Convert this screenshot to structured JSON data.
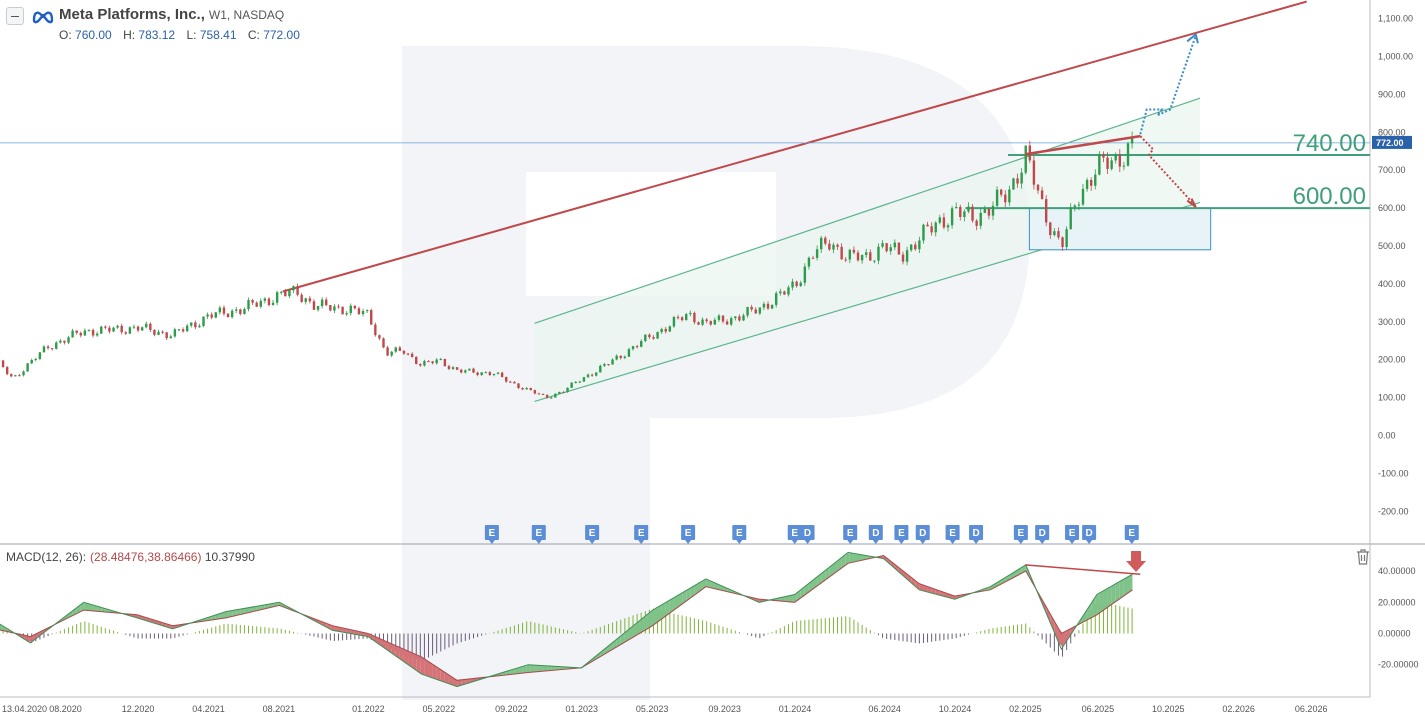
{
  "header": {
    "symbol": "Meta Platforms, Inc.,",
    "meta": "W1, NASDAQ",
    "ohlc": [
      {
        "k": "O:",
        "v": "760.00"
      },
      {
        "k": "H:",
        "v": "783.12"
      },
      {
        "k": "L:",
        "v": "758.41"
      },
      {
        "k": "C:",
        "v": "772.00"
      }
    ]
  },
  "macd_label": {
    "name": "MACD(12, 26):",
    "values": "(28.48476,38.86466)",
    "hist": "10.37990"
  },
  "colors": {
    "up": "#2e9b4a",
    "down": "#c0484a",
    "channel": "#5cb58e",
    "trend": "#c0484a",
    "level": "#3f9f7a",
    "accent": "#2962a8"
  },
  "icons": [
    "collapse-icon",
    "meta-logo-icon",
    "trash-icon",
    "earnings-marker-icon",
    "dividend-marker-icon",
    "down-arrow-icon"
  ],
  "chart_data": {
    "type": "candlestick",
    "price_axis": {
      "ticks": [
        "1,100.00",
        "1,000.00",
        "900.00",
        "800.00",
        "700.00",
        "600.00",
        "500.00",
        "400.00",
        "300.00",
        "200.00",
        "100.00",
        "0.00",
        "-100.00",
        "-200.00"
      ]
    },
    "time_axis": {
      "ticks": [
        "13.04.2020",
        "08.2020",
        "12.2020",
        "04.2021",
        "08.2021",
        "01.2022",
        "05.2022",
        "09.2022",
        "01.2023",
        "05.2023",
        "09.2023",
        "01.2024",
        "06.2024",
        "10.2024",
        "02.2025",
        "06.2025",
        "10.2025",
        "02.2026",
        "06.2026"
      ]
    },
    "current_price": {
      "label": "772.00",
      "value": 772
    },
    "levels": [
      {
        "label": "740.00",
        "value": 740
      },
      {
        "label": "600.00",
        "value": 600
      }
    ],
    "price_path": [
      [
        "2020-04",
        200
      ],
      [
        "2020-05",
        150
      ],
      [
        "2020-07",
        235
      ],
      [
        "2020-09",
        275
      ],
      [
        "2020-11",
        280
      ],
      [
        "2020-12",
        285
      ],
      [
        "2021-02",
        265
      ],
      [
        "2021-04",
        315
      ],
      [
        "2021-06",
        335
      ],
      [
        "2021-08",
        370
      ],
      [
        "2021-09",
        380
      ],
      [
        "2021-10",
        340
      ],
      [
        "2021-11",
        340
      ],
      [
        "2021-12",
        330
      ],
      [
        "2022-01",
        320
      ],
      [
        "2022-02",
        215
      ],
      [
        "2022-03",
        225
      ],
      [
        "2022-04",
        185
      ],
      [
        "2022-05",
        200
      ],
      [
        "2022-06",
        170
      ],
      [
        "2022-08",
        165
      ],
      [
        "2022-09",
        140
      ],
      [
        "2022-11",
        100
      ],
      [
        "2022-12",
        118
      ],
      [
        "2023-01",
        150
      ],
      [
        "2023-02",
        175
      ],
      [
        "2023-03",
        205
      ],
      [
        "2023-05",
        265
      ],
      [
        "2023-07",
        320
      ],
      [
        "2023-08",
        295
      ],
      [
        "2023-10",
        315
      ],
      [
        "2023-11",
        335
      ],
      [
        "2024-01",
        395
      ],
      [
        "2024-02",
        480
      ],
      [
        "2024-03",
        510
      ],
      [
        "2024-04",
        470
      ],
      [
        "2024-05",
        470
      ],
      [
        "2024-06",
        500
      ],
      [
        "2024-07",
        475
      ],
      [
        "2024-08",
        520
      ],
      [
        "2024-09",
        560
      ],
      [
        "2024-10",
        590
      ],
      [
        "2024-11",
        575
      ],
      [
        "2024-12",
        600
      ],
      [
        "2025-01",
        640
      ],
      [
        "2025-02",
        740
      ],
      [
        "2025-03",
        590
      ],
      [
        "2025-04",
        500
      ],
      [
        "2025-05",
        635
      ],
      [
        "2025-06",
        710
      ],
      [
        "2025-07",
        720
      ],
      [
        "2025-08",
        772
      ]
    ],
    "earnings_markers": [
      "E",
      "E",
      "E",
      "E",
      "E",
      "E",
      "E",
      "D",
      "E",
      "D",
      "E",
      "D",
      "E",
      "D",
      "E",
      "D",
      "E",
      "D",
      "E"
    ],
    "macd": {
      "axis_ticks": [
        "40.00000",
        "20.00000",
        "0.00000",
        "-20.00000"
      ],
      "macd_line": [
        [
          "2020-04",
          8
        ],
        [
          "2020-06",
          -6
        ],
        [
          "2020-09",
          20
        ],
        [
          "2020-12",
          10
        ],
        [
          "2021-02",
          3
        ],
        [
          "2021-05",
          14
        ],
        [
          "2021-08",
          20
        ],
        [
          "2021-11",
          2
        ],
        [
          "2022-01",
          -2
        ],
        [
          "2022-04",
          -26
        ],
        [
          "2022-06",
          -34
        ],
        [
          "2022-10",
          -20
        ],
        [
          "2023-01",
          -22
        ],
        [
          "2023-05",
          15
        ],
        [
          "2023-08",
          35
        ],
        [
          "2023-11",
          20
        ],
        [
          "2024-01",
          25
        ],
        [
          "2024-04",
          52
        ],
        [
          "2024-06",
          48
        ],
        [
          "2024-08",
          28
        ],
        [
          "2024-10",
          22
        ],
        [
          "2024-12",
          30
        ],
        [
          "2025-02",
          44
        ],
        [
          "2025-04",
          -10
        ],
        [
          "2025-06",
          25
        ],
        [
          "2025-08",
          38
        ]
      ],
      "signal_line": [
        [
          "2020-04",
          3
        ],
        [
          "2020-06",
          -2
        ],
        [
          "2020-09",
          15
        ],
        [
          "2020-12",
          12
        ],
        [
          "2021-02",
          5
        ],
        [
          "2021-05",
          10
        ],
        [
          "2021-08",
          18
        ],
        [
          "2021-11",
          5
        ],
        [
          "2022-01",
          0
        ],
        [
          "2022-04",
          -15
        ],
        [
          "2022-06",
          -30
        ],
        [
          "2022-10",
          -25
        ],
        [
          "2023-01",
          -22
        ],
        [
          "2023-05",
          5
        ],
        [
          "2023-08",
          30
        ],
        [
          "2023-11",
          22
        ],
        [
          "2024-01",
          20
        ],
        [
          "2024-04",
          45
        ],
        [
          "2024-06",
          50
        ],
        [
          "2024-08",
          32
        ],
        [
          "2024-10",
          24
        ],
        [
          "2024-12",
          28
        ],
        [
          "2025-02",
          40
        ],
        [
          "2025-04",
          0
        ],
        [
          "2025-06",
          12
        ],
        [
          "2025-08",
          28
        ]
      ]
    }
  }
}
